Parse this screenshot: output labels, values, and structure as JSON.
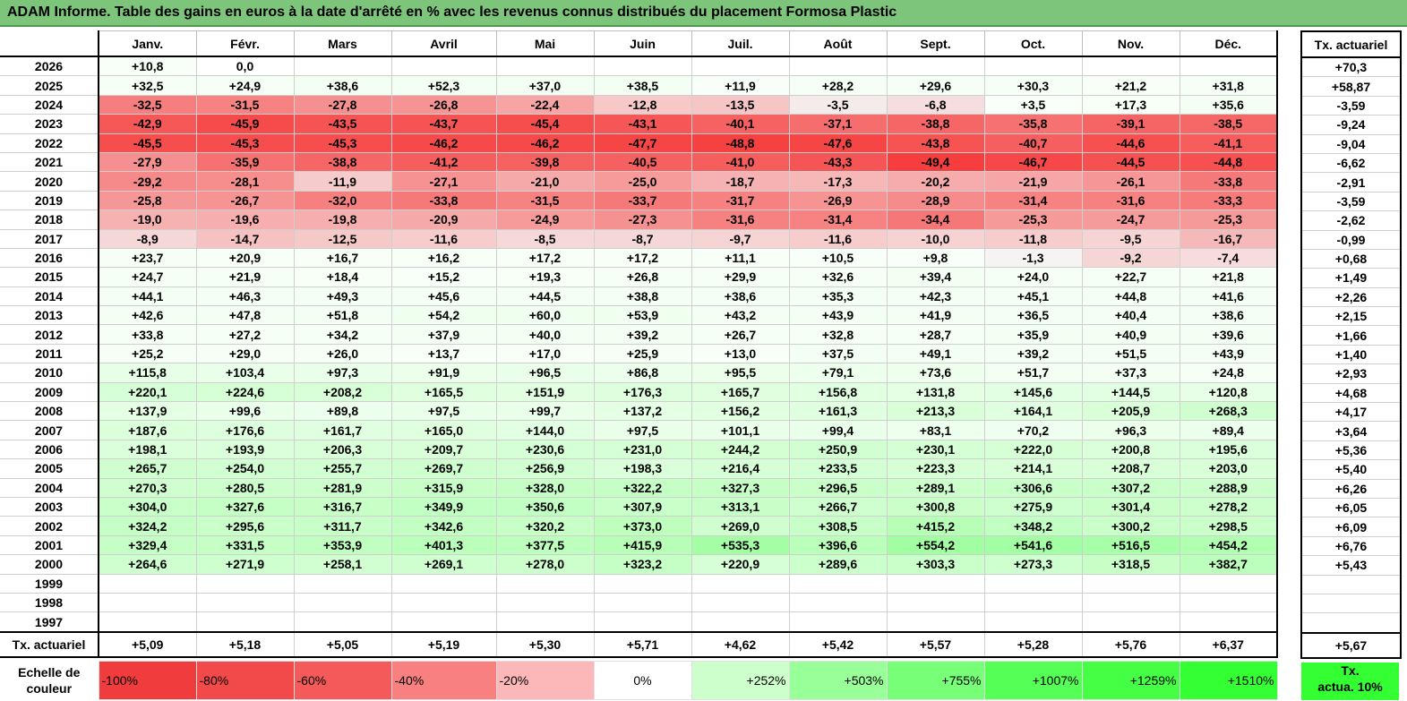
{
  "title": "ADAM Informe. Table des gains en euros à la date d'arrêté en % avec les revenus connus distribués du placement Formosa Plastic",
  "months": [
    "Janv.",
    "Févr.",
    "Mars",
    "Avril",
    "Mai",
    "Juin",
    "Juil.",
    "Août",
    "Sept.",
    "Oct.",
    "Nov.",
    "Déc."
  ],
  "side_header": "Tx. actuariel",
  "avg_row_label": "Tx. actuariel",
  "rows": [
    {
      "year": "2026",
      "values": [
        "+10,8",
        "0,0",
        "",
        "",
        "",
        "",
        "",
        "",
        "",
        "",
        "",
        ""
      ],
      "tx": "+70,3"
    },
    {
      "year": "2025",
      "values": [
        "+32,5",
        "+24,9",
        "+38,6",
        "+52,3",
        "+37,0",
        "+38,5",
        "+11,9",
        "+28,2",
        "+29,6",
        "+30,3",
        "+21,2",
        "+31,8"
      ],
      "tx": "+58,87"
    },
    {
      "year": "2024",
      "values": [
        "-32,5",
        "-31,5",
        "-27,8",
        "-26,8",
        "-22,4",
        "-12,8",
        "-13,5",
        "-3,5",
        "-6,8",
        "+3,5",
        "+17,3",
        "+35,6"
      ],
      "tx": "-3,59"
    },
    {
      "year": "2023",
      "values": [
        "-42,9",
        "-45,9",
        "-43,5",
        "-43,7",
        "-45,4",
        "-43,1",
        "-40,1",
        "-37,1",
        "-38,8",
        "-35,8",
        "-39,1",
        "-38,5"
      ],
      "tx": "-9,24"
    },
    {
      "year": "2022",
      "values": [
        "-45,5",
        "-45,3",
        "-45,3",
        "-46,2",
        "-46,2",
        "-47,7",
        "-48,8",
        "-47,6",
        "-43,8",
        "-40,7",
        "-44,6",
        "-41,1"
      ],
      "tx": "-9,04"
    },
    {
      "year": "2021",
      "values": [
        "-27,9",
        "-35,9",
        "-38,8",
        "-41,2",
        "-39,8",
        "-40,5",
        "-41,0",
        "-43,3",
        "-49,4",
        "-46,7",
        "-44,5",
        "-44,8"
      ],
      "tx": "-6,62"
    },
    {
      "year": "2020",
      "values": [
        "-29,2",
        "-28,1",
        "-11,9",
        "-27,1",
        "-21,0",
        "-25,0",
        "-18,7",
        "-17,3",
        "-20,2",
        "-21,9",
        "-26,1",
        "-33,8"
      ],
      "tx": "-2,91"
    },
    {
      "year": "2019",
      "values": [
        "-25,8",
        "-26,7",
        "-32,0",
        "-33,8",
        "-31,5",
        "-33,7",
        "-31,7",
        "-26,9",
        "-28,9",
        "-31,4",
        "-31,6",
        "-33,3"
      ],
      "tx": "-3,59"
    },
    {
      "year": "2018",
      "values": [
        "-19,0",
        "-19,6",
        "-19,8",
        "-20,9",
        "-24,9",
        "-27,3",
        "-31,6",
        "-31,4",
        "-34,4",
        "-25,3",
        "-24,7",
        "-25,3"
      ],
      "tx": "-2,62"
    },
    {
      "year": "2017",
      "values": [
        "-8,9",
        "-14,7",
        "-12,5",
        "-11,6",
        "-8,5",
        "-8,7",
        "-9,7",
        "-11,6",
        "-10,0",
        "-11,8",
        "-9,5",
        "-16,7"
      ],
      "tx": "-0,99"
    },
    {
      "year": "2016",
      "values": [
        "+23,7",
        "+20,9",
        "+16,7",
        "+16,2",
        "+17,2",
        "+17,2",
        "+11,1",
        "+10,5",
        "+9,8",
        "-1,3",
        "-9,2",
        "-7,4"
      ],
      "tx": "+0,68"
    },
    {
      "year": "2015",
      "values": [
        "+24,7",
        "+21,9",
        "+18,4",
        "+15,2",
        "+19,3",
        "+26,8",
        "+29,9",
        "+32,6",
        "+39,4",
        "+24,0",
        "+22,7",
        "+21,8"
      ],
      "tx": "+1,49"
    },
    {
      "year": "2014",
      "values": [
        "+44,1",
        "+46,3",
        "+49,3",
        "+45,6",
        "+44,5",
        "+38,8",
        "+38,6",
        "+35,3",
        "+42,3",
        "+45,1",
        "+44,8",
        "+41,6"
      ],
      "tx": "+2,26"
    },
    {
      "year": "2013",
      "values": [
        "+42,6",
        "+47,8",
        "+51,8",
        "+54,2",
        "+60,0",
        "+53,9",
        "+43,2",
        "+43,9",
        "+41,9",
        "+36,5",
        "+40,4",
        "+38,6"
      ],
      "tx": "+2,15"
    },
    {
      "year": "2012",
      "values": [
        "+33,8",
        "+27,2",
        "+34,2",
        "+37,9",
        "+40,0",
        "+39,2",
        "+26,7",
        "+32,8",
        "+28,7",
        "+35,9",
        "+40,9",
        "+39,6"
      ],
      "tx": "+1,66"
    },
    {
      "year": "2011",
      "values": [
        "+25,2",
        "+29,0",
        "+26,0",
        "+13,7",
        "+17,0",
        "+25,9",
        "+13,0",
        "+37,5",
        "+49,1",
        "+39,2",
        "+51,5",
        "+43,9"
      ],
      "tx": "+1,40"
    },
    {
      "year": "2010",
      "values": [
        "+115,8",
        "+103,4",
        "+97,3",
        "+91,9",
        "+96,5",
        "+86,8",
        "+95,5",
        "+79,1",
        "+73,6",
        "+51,7",
        "+37,3",
        "+24,8"
      ],
      "tx": "+2,93"
    },
    {
      "year": "2009",
      "values": [
        "+220,1",
        "+224,6",
        "+208,2",
        "+165,5",
        "+151,9",
        "+176,3",
        "+165,7",
        "+156,8",
        "+131,8",
        "+145,6",
        "+144,5",
        "+120,8"
      ],
      "tx": "+4,68"
    },
    {
      "year": "2008",
      "values": [
        "+137,9",
        "+99,6",
        "+89,8",
        "+97,5",
        "+99,7",
        "+137,2",
        "+156,2",
        "+161,3",
        "+213,3",
        "+164,1",
        "+205,9",
        "+268,3"
      ],
      "tx": "+4,17"
    },
    {
      "year": "2007",
      "values": [
        "+187,6",
        "+176,6",
        "+161,7",
        "+165,0",
        "+144,0",
        "+97,5",
        "+101,1",
        "+99,4",
        "+83,1",
        "+70,2",
        "+96,3",
        "+89,4"
      ],
      "tx": "+3,64"
    },
    {
      "year": "2006",
      "values": [
        "+198,1",
        "+193,9",
        "+206,3",
        "+209,7",
        "+230,6",
        "+231,0",
        "+244,2",
        "+250,9",
        "+230,1",
        "+222,0",
        "+200,8",
        "+195,6"
      ],
      "tx": "+5,36"
    },
    {
      "year": "2005",
      "values": [
        "+265,7",
        "+254,0",
        "+255,7",
        "+269,7",
        "+256,9",
        "+198,3",
        "+216,4",
        "+233,5",
        "+223,3",
        "+214,1",
        "+208,7",
        "+203,0"
      ],
      "tx": "+5,40"
    },
    {
      "year": "2004",
      "values": [
        "+270,3",
        "+280,5",
        "+281,9",
        "+315,9",
        "+328,0",
        "+322,2",
        "+327,3",
        "+296,5",
        "+289,1",
        "+306,6",
        "+307,2",
        "+288,9"
      ],
      "tx": "+6,26"
    },
    {
      "year": "2003",
      "values": [
        "+304,0",
        "+327,6",
        "+316,7",
        "+349,9",
        "+350,6",
        "+307,9",
        "+313,1",
        "+266,7",
        "+300,8",
        "+275,9",
        "+301,4",
        "+278,2"
      ],
      "tx": "+6,05"
    },
    {
      "year": "2002",
      "values": [
        "+324,2",
        "+295,6",
        "+311,7",
        "+342,6",
        "+320,2",
        "+373,0",
        "+269,0",
        "+308,5",
        "+415,2",
        "+348,2",
        "+300,2",
        "+298,5"
      ],
      "tx": "+6,09"
    },
    {
      "year": "2001",
      "values": [
        "+329,4",
        "+331,5",
        "+353,9",
        "+401,3",
        "+377,5",
        "+415,9",
        "+535,3",
        "+396,6",
        "+554,2",
        "+541,6",
        "+516,5",
        "+454,2"
      ],
      "tx": "+6,76"
    },
    {
      "year": "2000",
      "values": [
        "+264,6",
        "+271,9",
        "+258,1",
        "+269,1",
        "+278,0",
        "+323,2",
        "+220,9",
        "+289,6",
        "+303,3",
        "+273,3",
        "+318,5",
        "+382,7"
      ],
      "tx": "+5,43"
    },
    {
      "year": "1999",
      "values": [
        "",
        "",
        "",
        "",
        "",
        "",
        "",
        "",
        "",
        "",
        "",
        ""
      ],
      "tx": ""
    },
    {
      "year": "1998",
      "values": [
        "",
        "",
        "",
        "",
        "",
        "",
        "",
        "",
        "",
        "",
        "",
        ""
      ],
      "tx": ""
    },
    {
      "year": "1997",
      "values": [
        "",
        "",
        "",
        "",
        "",
        "",
        "",
        "",
        "",
        "",
        "",
        ""
      ],
      "tx": ""
    }
  ],
  "avg_values": [
    "+5,09",
    "+5,18",
    "+5,05",
    "+5,19",
    "+5,30",
    "+5,71",
    "+4,62",
    "+5,42",
    "+5,57",
    "+5,28",
    "+5,76",
    "+6,37"
  ],
  "avg_tx": "+5,67",
  "scale": {
    "label_line1": "Echelle de",
    "label_line2": "couleur",
    "items": [
      {
        "text": "-100%",
        "color": "#f03c3c",
        "kind": "neg"
      },
      {
        "text": "-80%",
        "color": "#f24a4a",
        "kind": "neg"
      },
      {
        "text": "-60%",
        "color": "#f45a5a",
        "kind": "neg"
      },
      {
        "text": "-40%",
        "color": "#f88080",
        "kind": "neg"
      },
      {
        "text": "-20%",
        "color": "#fcb8b8",
        "kind": "neg"
      },
      {
        "text": "0%",
        "color": "#ffffff",
        "kind": "zero"
      },
      {
        "text": "+252%",
        "color": "#ccffcc",
        "kind": "pos"
      },
      {
        "text": "+503%",
        "color": "#99ff99",
        "kind": "pos"
      },
      {
        "text": "+755%",
        "color": "#77ff77",
        "kind": "pos"
      },
      {
        "text": "+1007%",
        "color": "#55ff55",
        "kind": "pos"
      },
      {
        "text": "+1259%",
        "color": "#44ff44",
        "kind": "pos"
      },
      {
        "text": "+1510%",
        "color": "#33ff33",
        "kind": "pos"
      }
    ],
    "side_line1": "Tx.",
    "side_line2": "actua. 10%",
    "side_color": "#33ff33"
  },
  "colors": {
    "title_bg": "#7cc57b",
    "negative": "#f03c3c",
    "positive": "#33ff33"
  }
}
